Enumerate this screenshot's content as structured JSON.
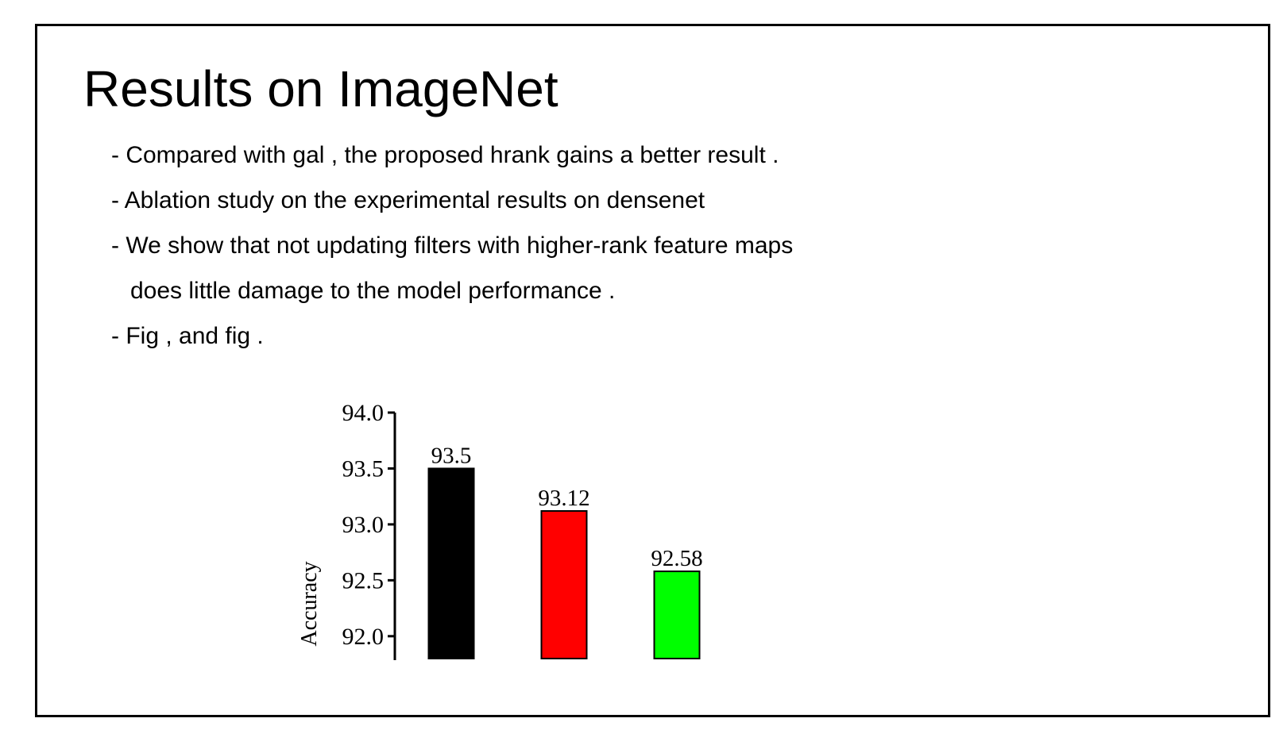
{
  "slide": {
    "title": "Results on ImageNet",
    "bullets": [
      "- Compared with gal , the proposed hrank gains a better result .",
      "- Ablation study on the experimental results on densenet",
      "- We show that not updating filters with higher-rank feature maps",
      "does little damage to the model performance .",
      "- Fig , and fig ."
    ]
  },
  "chart_data": {
    "type": "bar",
    "values": [
      93.5,
      93.12,
      92.58
    ],
    "value_labels": [
      "93.5",
      "93.12",
      "92.58"
    ],
    "bar_colors": [
      "#000000",
      "#ff0000",
      "#00ff00"
    ],
    "ylabel": "Accuracy",
    "ylim": [
      91.8,
      94.0
    ],
    "yticks": [
      92.0,
      92.5,
      93.0,
      93.5,
      94.0
    ],
    "ytick_labels": [
      "92.0",
      "92.5",
      "93.0",
      "93.5",
      "94.0"
    ],
    "grid": false
  }
}
